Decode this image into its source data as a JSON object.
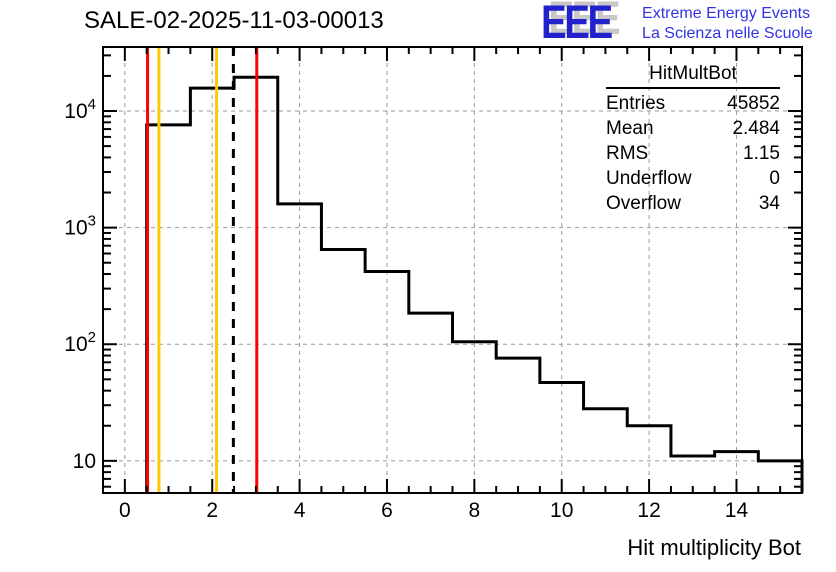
{
  "header": {
    "title": "SALE-02-2025-11-03-00013"
  },
  "logo": {
    "acronym": "EEE",
    "line1": "Extreme Energy Events",
    "line2": "La Scienza nelle Scuole",
    "acronym_color": "#2222cc",
    "text_color": "#3333e6",
    "shadow_color": "#c8c8c8"
  },
  "stats": {
    "title": "HitMultBot",
    "rows": [
      {
        "label": "Entries",
        "value": "45852"
      },
      {
        "label": "Mean",
        "value": "2.484"
      },
      {
        "label": "RMS",
        "value": "1.15"
      },
      {
        "label": "Underflow",
        "value": "0"
      },
      {
        "label": "Overflow",
        "value": "34"
      }
    ]
  },
  "chart_data": {
    "type": "bar",
    "subtype": "step-histogram",
    "title": "SALE-02-2025-11-03-00013",
    "xlabel": "Hit multiplicity Bot",
    "ylabel": "",
    "y_scale": "log",
    "grid": true,
    "bin_start": 0.5,
    "bin_width": 1,
    "bin_centers": [
      1,
      2,
      3,
      4,
      5,
      6,
      7,
      8,
      9,
      10,
      11,
      12,
      13,
      14,
      15
    ],
    "counts": [
      7600,
      15700,
      19500,
      1600,
      650,
      420,
      185,
      105,
      76,
      47,
      28,
      20,
      11,
      12,
      10
    ],
    "xlim": [
      -0.5,
      15.5
    ],
    "ylim": [
      5.3,
      35400
    ],
    "x_ticks": [
      0,
      2,
      4,
      6,
      8,
      10,
      12,
      14
    ],
    "x_minor_step": 0.5,
    "y_ticks": [
      {
        "value": 10,
        "base": "10",
        "exp": ""
      },
      {
        "value": 100,
        "base": "10",
        "exp": "2"
      },
      {
        "value": 1000,
        "base": "10",
        "exp": "3"
      },
      {
        "value": 10000,
        "base": "10",
        "exp": "4"
      }
    ],
    "line_color": "#000000",
    "grid_color": "#9a9a9a",
    "marker_lines": [
      {
        "x": 0.52,
        "color": "#ff0000",
        "style": "solid"
      },
      {
        "x": 0.78,
        "color": "#ffc800",
        "style": "solid"
      },
      {
        "x": 2.1,
        "color": "#ffc800",
        "style": "solid"
      },
      {
        "x": 2.484,
        "color": "#000000",
        "style": "dashed"
      },
      {
        "x": 3.02,
        "color": "#ff0000",
        "style": "solid"
      }
    ]
  }
}
